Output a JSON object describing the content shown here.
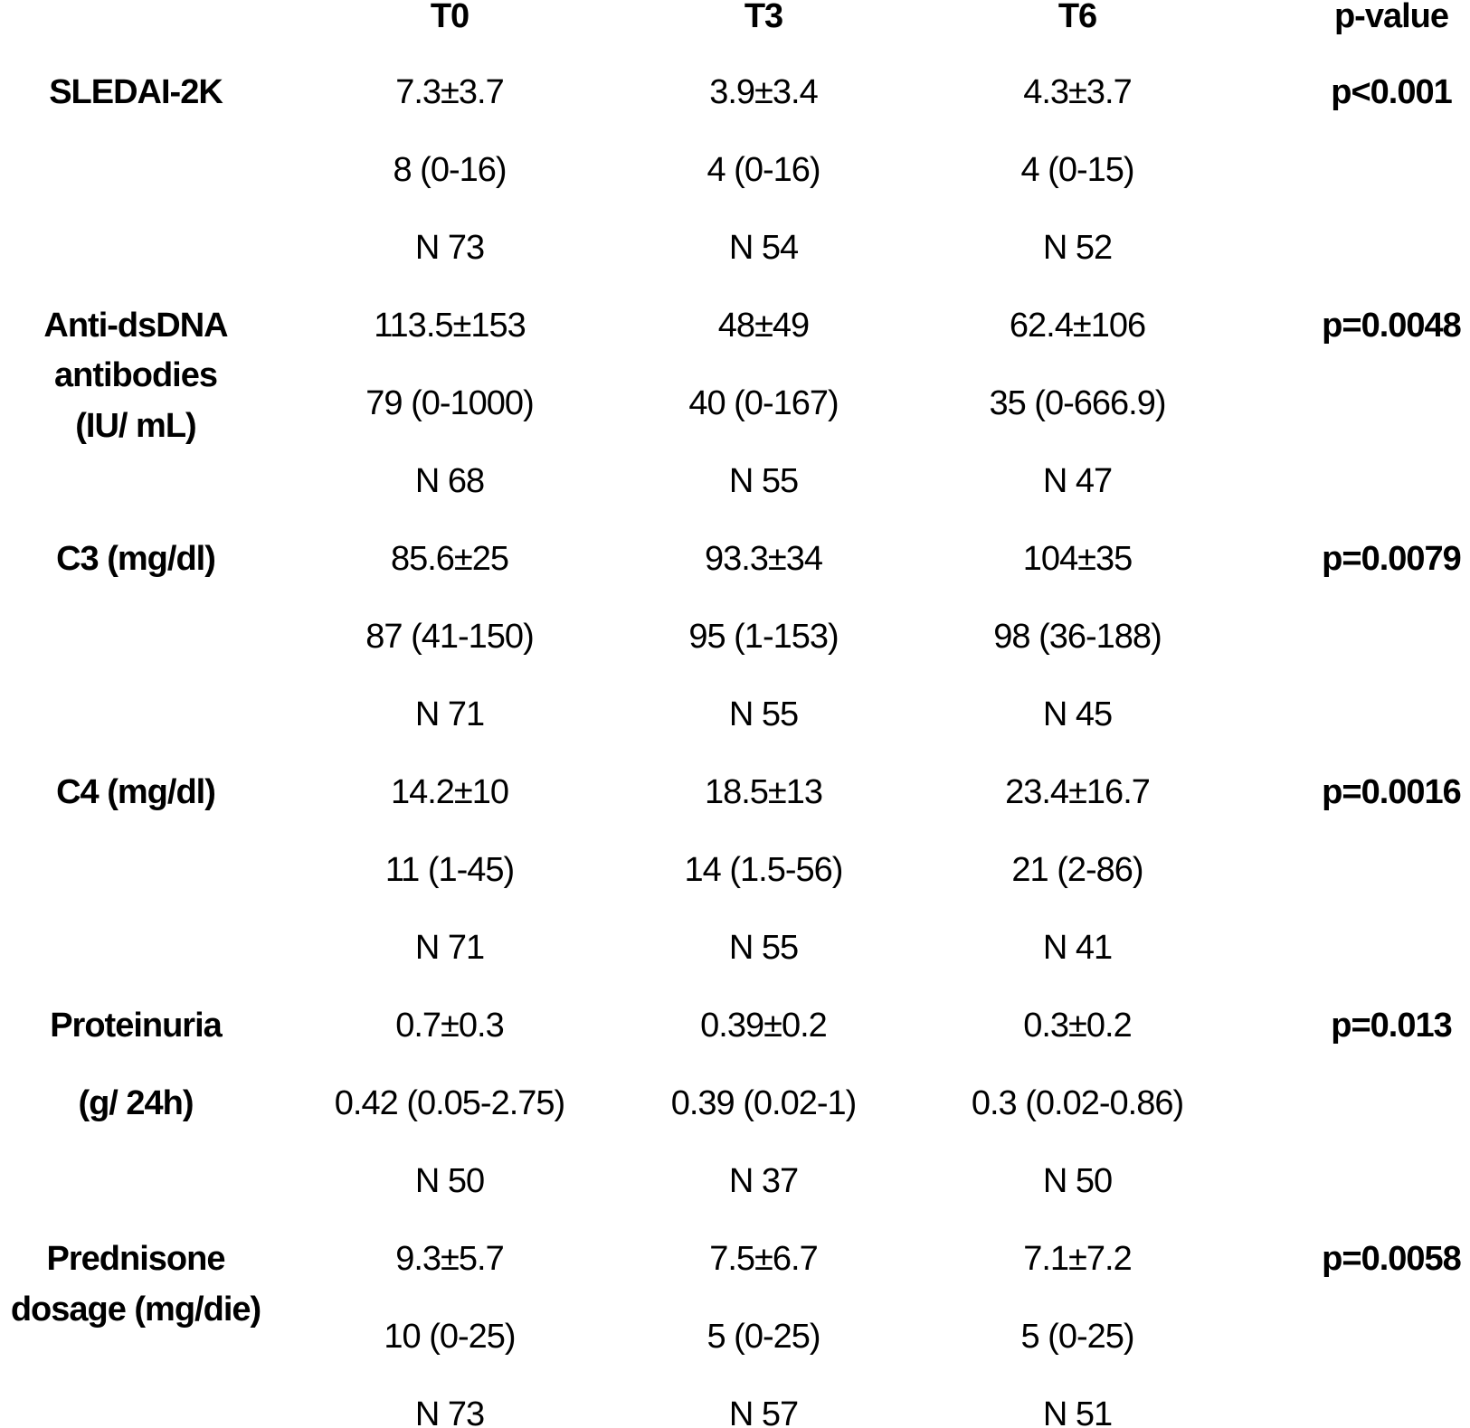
{
  "header": {
    "columns": [
      "T0",
      "T3",
      "T6",
      "p-value"
    ]
  },
  "rows": [
    {
      "label": [
        "SLEDAI-2K"
      ],
      "p": "p<0.001",
      "cells": [
        [
          "7.3±3.7",
          "8 (0-16)",
          "N 73"
        ],
        [
          "3.9±3.4",
          "4 (0-16)",
          "N 54"
        ],
        [
          "4.3±3.7",
          "4 (0-15)",
          "N 52"
        ]
      ]
    },
    {
      "label": [
        "Anti-dsDNA",
        "antibodies",
        "(IU/ mL)"
      ],
      "p": "p=0.0048",
      "cells": [
        [
          "113.5±153",
          "79 (0-1000)",
          "N 68"
        ],
        [
          "48±49",
          "40 (0-167)",
          "N 55"
        ],
        [
          "62.4±106",
          "35 (0-666.9)",
          "N 47"
        ]
      ]
    },
    {
      "label": [
        "C3 (mg/dl)"
      ],
      "p": "p=0.0079",
      "cells": [
        [
          "85.6±25",
          "87 (41-150)",
          "N 71"
        ],
        [
          "93.3±34",
          "95 (1-153)",
          "N 55"
        ],
        [
          "104±35",
          "98 (36-188)",
          "N 45"
        ]
      ]
    },
    {
      "label": [
        "C4 (mg/dl)"
      ],
      "p": "p=0.0016",
      "cells": [
        [
          "14.2±10",
          "11 (1-45)",
          "N 71"
        ],
        [
          "18.5±13",
          "14 (1.5-56)",
          "N 55"
        ],
        [
          "23.4±16.7",
          "21 (2-86)",
          "N 41"
        ]
      ]
    },
    {
      "label": [
        "Proteinuria",
        "(g/ 24h)"
      ],
      "p": "p=0.013",
      "cells": [
        [
          "0.7±0.3",
          "0.42 (0.05-2.75)",
          "N 50"
        ],
        [
          "0.39±0.2",
          "0.39 (0.02-1)",
          "N 37"
        ],
        [
          "0.3±0.2",
          "0.3 (0.02-0.86)",
          "N 50"
        ]
      ]
    },
    {
      "label": [
        "Prednisone",
        "dosage (mg/die)"
      ],
      "p": "p=0.0058",
      "cells": [
        [
          "9.3±5.7",
          "10 (0-25)",
          "N 73"
        ],
        [
          "7.5±6.7",
          "5 (0-25)",
          "N 57"
        ],
        [
          "7.1±7.2",
          "5 (0-25)",
          "N 51"
        ]
      ]
    }
  ]
}
